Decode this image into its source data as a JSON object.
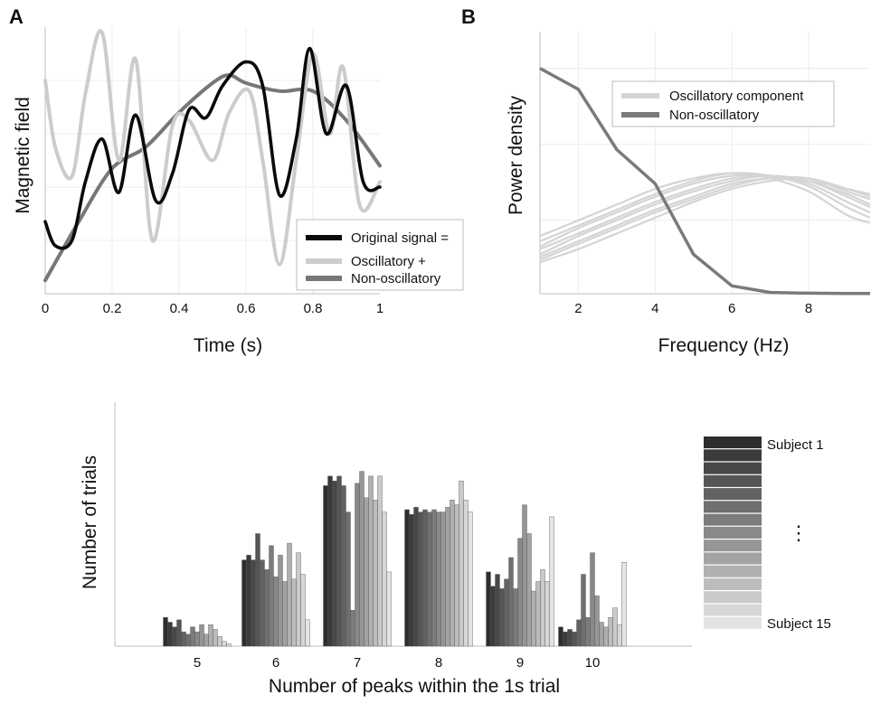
{
  "panels": {
    "a": "A",
    "b": "B"
  },
  "chart_data": [
    {
      "type": "line",
      "panel": "A",
      "xlabel": "Time (s)",
      "ylabel": "Magnetic field",
      "xlim": [
        0,
        1
      ],
      "ylim": [
        0,
        1
      ],
      "xticks": [
        0,
        0.2,
        0.4,
        0.6,
        0.8,
        1
      ],
      "xtick_labels": [
        "0",
        "0.2",
        "0.4",
        "0.6",
        "0.8",
        "1"
      ],
      "grid": true,
      "legend_position": "bottom-right",
      "series": [
        {
          "name": "Original signal =",
          "color": "#0a0a0a",
          "x": [
            0,
            0.03,
            0.08,
            0.12,
            0.17,
            0.22,
            0.27,
            0.33,
            0.38,
            0.43,
            0.48,
            0.53,
            0.6,
            0.65,
            0.7,
            0.75,
            0.79,
            0.84,
            0.9,
            0.95,
            1
          ],
          "y": [
            0.27,
            0.18,
            0.2,
            0.42,
            0.58,
            0.38,
            0.67,
            0.35,
            0.45,
            0.69,
            0.66,
            0.78,
            0.87,
            0.78,
            0.37,
            0.58,
            0.92,
            0.6,
            0.78,
            0.42,
            0.4
          ]
        },
        {
          "name": "Oscillatory +",
          "color": "#cccccc",
          "x": [
            0,
            0.03,
            0.08,
            0.12,
            0.17,
            0.22,
            0.27,
            0.32,
            0.38,
            0.43,
            0.5,
            0.55,
            0.61,
            0.65,
            0.7,
            0.75,
            0.8,
            0.85,
            0.89,
            0.94,
            1
          ],
          "y": [
            0.8,
            0.55,
            0.44,
            0.75,
            0.98,
            0.5,
            0.88,
            0.2,
            0.63,
            0.65,
            0.5,
            0.68,
            0.76,
            0.5,
            0.11,
            0.5,
            0.9,
            0.6,
            0.85,
            0.33,
            0.42
          ]
        },
        {
          "name": "Non-oscillatory",
          "color": "#777777",
          "x": [
            0,
            0.1,
            0.2,
            0.3,
            0.4,
            0.5,
            0.55,
            0.6,
            0.7,
            0.8,
            0.9,
            1
          ],
          "y": [
            0.05,
            0.27,
            0.47,
            0.55,
            0.68,
            0.79,
            0.82,
            0.79,
            0.76,
            0.76,
            0.65,
            0.48
          ]
        }
      ]
    },
    {
      "type": "line",
      "panel": "B",
      "xlabel": "Frequency (Hz)",
      "ylabel": "Power density",
      "xlim": [
        1,
        9.6
      ],
      "ylim": [
        0,
        1
      ],
      "xticks": [
        2,
        4,
        6,
        8
      ],
      "xtick_labels": [
        "2",
        "4",
        "6",
        "8"
      ],
      "grid": true,
      "legend_position": "top-right",
      "legend": [
        {
          "name": "Oscillatory component",
          "color": "#d4d4d4"
        },
        {
          "name": "Non-oscillatory",
          "color": "#7a7a7a"
        }
      ],
      "non_oscillatory": {
        "color": "#7a7a7a",
        "x": [
          1,
          2,
          3,
          4,
          5,
          6,
          7,
          8,
          9,
          9.6
        ],
        "y": [
          0.86,
          0.78,
          0.55,
          0.42,
          0.15,
          0.03,
          0.005,
          0.002,
          0.001,
          0.001
        ]
      },
      "oscillatory": {
        "color": "#d4d4d4",
        "x": [
          1,
          2,
          3,
          4,
          5,
          6,
          7,
          8,
          9,
          9.6
        ],
        "curves": [
          [
            0.22,
            0.28,
            0.34,
            0.4,
            0.44,
            0.46,
            0.44,
            0.39,
            0.3,
            0.27
          ],
          [
            0.2,
            0.26,
            0.32,
            0.38,
            0.43,
            0.46,
            0.45,
            0.41,
            0.33,
            0.29
          ],
          [
            0.18,
            0.25,
            0.31,
            0.37,
            0.42,
            0.45,
            0.45,
            0.42,
            0.35,
            0.31
          ],
          [
            0.17,
            0.23,
            0.29,
            0.35,
            0.4,
            0.44,
            0.45,
            0.43,
            0.37,
            0.33
          ],
          [
            0.15,
            0.22,
            0.28,
            0.34,
            0.39,
            0.43,
            0.45,
            0.43,
            0.38,
            0.34
          ],
          [
            0.14,
            0.2,
            0.26,
            0.32,
            0.37,
            0.42,
            0.44,
            0.44,
            0.39,
            0.36
          ],
          [
            0.13,
            0.19,
            0.25,
            0.31,
            0.36,
            0.41,
            0.44,
            0.43,
            0.4,
            0.37
          ],
          [
            0.12,
            0.17,
            0.23,
            0.29,
            0.35,
            0.4,
            0.43,
            0.44,
            0.4,
            0.38
          ]
        ]
      }
    },
    {
      "type": "bar",
      "panel": "bottom",
      "xlabel": "Number of peaks within the 1s trial",
      "ylabel": "Number of trials",
      "categories": [
        "5",
        "6",
        "7",
        "8",
        "9",
        "10"
      ],
      "ylim": [
        0,
        100
      ],
      "legend_labels": {
        "first": "Subject 1",
        "ellipsis": "⋮",
        "last": "Subject 15"
      },
      "subject_colors": [
        "#2e2e2e",
        "#3b3b3b",
        "#484848",
        "#555555",
        "#626262",
        "#6f6f6f",
        "#7c7c7c",
        "#898989",
        "#969696",
        "#a3a3a3",
        "#b0b0b0",
        "#bdbdbd",
        "#cacaca",
        "#d7d7d7",
        "#e4e4e4"
      ],
      "values": [
        [
          12,
          10,
          8,
          11,
          6,
          5,
          8,
          6,
          9,
          5,
          9,
          7,
          4,
          2,
          1
        ],
        [
          36,
          38,
          36,
          47,
          36,
          32,
          42,
          29,
          38,
          27,
          43,
          28,
          39,
          30,
          11
        ],
        [
          67,
          71,
          69,
          71,
          67,
          56,
          15,
          68,
          73,
          62,
          71,
          61,
          71,
          56,
          31
        ],
        [
          57,
          55,
          58,
          56,
          57,
          56,
          57,
          56,
          56,
          58,
          61,
          59,
          69,
          61,
          56
        ],
        [
          31,
          25,
          30,
          24,
          28,
          37,
          24,
          45,
          59,
          47,
          23,
          27,
          32,
          27,
          54
        ],
        [
          8,
          6,
          7,
          6,
          11,
          30,
          12,
          39,
          21,
          10,
          8,
          12,
          16,
          9,
          35
        ]
      ]
    }
  ]
}
